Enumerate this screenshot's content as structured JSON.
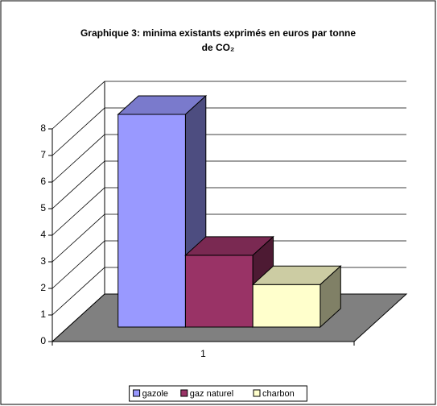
{
  "chart_data": {
    "type": "bar3d",
    "title": [
      "Graphique 3: minima existants exprimés en euros par tonne",
      "de CO₂"
    ],
    "categories": [
      "1"
    ],
    "series": [
      {
        "name": "gazole",
        "color": "#9999ff",
        "values": [
          8
        ]
      },
      {
        "name": "gaz naturel",
        "color": "#993366",
        "values": [
          2.7
        ]
      },
      {
        "name": "charbon",
        "color": "#ffffcc",
        "values": [
          1.6
        ]
      }
    ],
    "ylim": [
      0,
      8
    ],
    "yticks": [
      0,
      1,
      2,
      3,
      4,
      5,
      6,
      7,
      8
    ],
    "grid": true
  }
}
